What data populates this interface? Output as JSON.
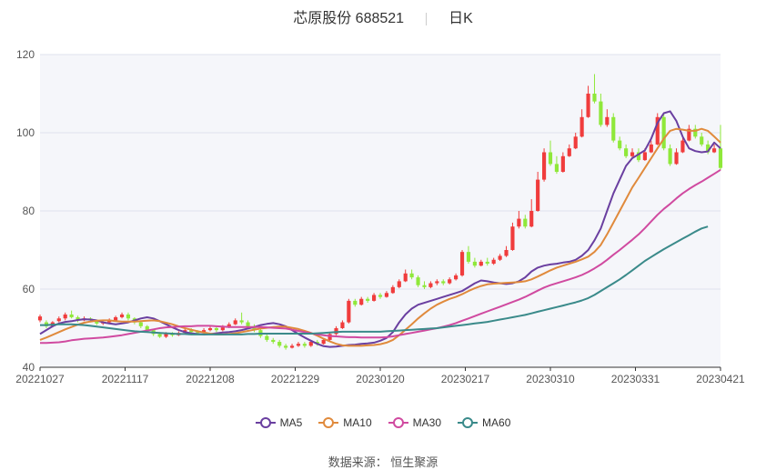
{
  "title": {
    "name": "芯原股份 688521",
    "period": "日K"
  },
  "source_text": "数据来源： 恒生聚源",
  "colors": {
    "up": "#f03c3c",
    "down": "#8fe83a",
    "ma5": "#6a3fa0",
    "ma10": "#e08a3c",
    "ma30": "#d04aa0",
    "ma60": "#3a8a8a",
    "plot_band": "#f5f6fa",
    "grid": "#dfe3ee"
  },
  "chart_data": {
    "type": "candlestick",
    "ylim": [
      40,
      120
    ],
    "yticks": [
      40,
      60,
      80,
      100,
      120
    ],
    "xtick_labels": [
      "20221027",
      "20221117",
      "20221208",
      "20221229",
      "20230120",
      "20230217",
      "20230310",
      "20230331",
      "20230421"
    ],
    "legend_position": "bottom-center",
    "grid": true,
    "series": [
      {
        "name": "MA5",
        "color_key": "ma5",
        "values": [
          48.5,
          49.5,
          50.5,
          51.2,
          51.6,
          51.8,
          52.1,
          52.3,
          52.2,
          52.0,
          51.5,
          51.2,
          51.0,
          51.2,
          51.5,
          52.0,
          52.5,
          52.8,
          52.5,
          51.8,
          51.0,
          50.2,
          49.5,
          49.0,
          48.7,
          48.5,
          48.4,
          48.5,
          48.7,
          48.9,
          49.0,
          49.2,
          49.5,
          49.9,
          50.3,
          50.8,
          51.1,
          51.3,
          51.0,
          50.5,
          49.5,
          48.5,
          47.6,
          46.8,
          46.0,
          45.4,
          45.2,
          45.3,
          45.5,
          45.7,
          45.8,
          46.0,
          46.1,
          46.3,
          46.8,
          47.5,
          49.0,
          51.5,
          53.5,
          55.0,
          56.0,
          56.5,
          57.0,
          57.5,
          58.0,
          58.5,
          59.0,
          59.5,
          60.5,
          61.5,
          62.2,
          62.0,
          61.7,
          61.5,
          61.3,
          61.5,
          62.0,
          63.0,
          64.5,
          65.5,
          66.0,
          66.3,
          66.5,
          66.8,
          67.0,
          67.5,
          68.5,
          70.0,
          72.5,
          75.5,
          80.0,
          84.5,
          88.0,
          91.5,
          93.5,
          94.5,
          95.5,
          98.5,
          102.5,
          105.0,
          105.5,
          103.0,
          99.0,
          96.0,
          95.3,
          95.0,
          95.2,
          97.5,
          96.0
        ]
      },
      {
        "name": "MA10",
        "color_key": "ma10",
        "values": [
          47.0,
          47.6,
          48.3,
          49.0,
          49.7,
          50.3,
          50.9,
          51.4,
          51.7,
          51.9,
          52.0,
          52.0,
          51.8,
          51.7,
          51.7,
          51.7,
          51.8,
          51.9,
          52.0,
          51.8,
          51.4,
          51.0,
          50.5,
          50.0,
          49.6,
          49.2,
          48.9,
          48.6,
          48.4,
          48.4,
          48.5,
          48.7,
          49.0,
          49.3,
          49.6,
          49.9,
          50.1,
          50.3,
          50.4,
          50.4,
          50.1,
          49.8,
          49.3,
          48.8,
          48.1,
          47.3,
          46.6,
          46.0,
          45.6,
          45.5,
          45.5,
          45.5,
          45.6,
          45.7,
          45.9,
          46.3,
          47.0,
          48.2,
          49.6,
          51.0,
          52.5,
          53.8,
          55.0,
          56.0,
          56.8,
          57.5,
          58.0,
          58.7,
          59.5,
          60.2,
          60.8,
          61.2,
          61.4,
          61.5,
          61.6,
          61.7,
          61.8,
          62.0,
          62.5,
          63.2,
          64.0,
          64.8,
          65.5,
          66.0,
          66.5,
          67.0,
          67.6,
          68.3,
          69.5,
          71.3,
          74.0,
          77.0,
          80.0,
          83.0,
          86.0,
          88.5,
          91.0,
          93.5,
          96.0,
          98.5,
          100.5,
          101.0,
          100.8,
          100.5,
          100.5,
          101.0,
          100.5,
          99.0,
          97.5
        ]
      },
      {
        "name": "MA30",
        "color_key": "ma30",
        "values": [
          46.2,
          46.2,
          46.3,
          46.4,
          46.6,
          46.9,
          47.1,
          47.3,
          47.4,
          47.5,
          47.6,
          47.8,
          48.0,
          48.2,
          48.5,
          48.8,
          49.1,
          49.4,
          49.7,
          50.0,
          50.2,
          50.3,
          50.4,
          50.5,
          50.5,
          50.6,
          50.6,
          50.6,
          50.5,
          50.4,
          50.3,
          50.3,
          50.3,
          50.3,
          50.3,
          50.3,
          50.2,
          50.1,
          50.0,
          49.9,
          49.6,
          49.3,
          49.0,
          48.7,
          48.4,
          48.2,
          48.0,
          47.9,
          47.8,
          47.7,
          47.7,
          47.6,
          47.6,
          47.6,
          47.6,
          47.7,
          47.9,
          48.2,
          48.5,
          48.8,
          49.1,
          49.4,
          49.7,
          50.0,
          50.4,
          50.8,
          51.3,
          51.9,
          52.5,
          53.1,
          53.7,
          54.3,
          54.9,
          55.5,
          56.1,
          56.7,
          57.3,
          58.0,
          58.8,
          59.6,
          60.4,
          61.0,
          61.5,
          62.0,
          62.5,
          63.0,
          63.6,
          64.4,
          65.3,
          66.3,
          67.5,
          68.8,
          70.0,
          71.3,
          72.6,
          74.0,
          75.6,
          77.3,
          79.0,
          80.5,
          81.8,
          83.2,
          84.5,
          85.6,
          86.6,
          87.5,
          88.5,
          89.5,
          90.5
        ]
      },
      {
        "name": "MA60",
        "color_key": "ma60",
        "values": [
          50.8,
          50.8,
          50.9,
          51.0,
          51.0,
          51.0,
          50.9,
          50.8,
          50.6,
          50.4,
          50.2,
          50.0,
          49.8,
          49.6,
          49.4,
          49.2,
          49.1,
          49.0,
          48.9,
          48.8,
          48.7,
          48.6,
          48.5,
          48.5,
          48.4,
          48.4,
          48.4,
          48.4,
          48.4,
          48.4,
          48.4,
          48.4,
          48.4,
          48.5,
          48.5,
          48.6,
          48.6,
          48.6,
          48.6,
          48.6,
          48.6,
          48.6,
          48.6,
          48.6,
          48.7,
          48.8,
          48.9,
          49.0,
          49.1,
          49.1,
          49.1,
          49.1,
          49.1,
          49.1,
          49.1,
          49.2,
          49.3,
          49.4,
          49.5,
          49.6,
          49.7,
          49.8,
          49.9,
          50.0,
          50.2,
          50.4,
          50.6,
          50.8,
          51.0,
          51.2,
          51.4,
          51.6,
          51.9,
          52.2,
          52.5,
          52.8,
          53.1,
          53.4,
          53.8,
          54.2,
          54.6,
          55.0,
          55.4,
          55.8,
          56.2,
          56.6,
          57.1,
          57.7,
          58.5,
          59.5,
          60.5,
          61.5,
          62.5,
          63.6,
          64.8,
          66.0,
          67.2,
          68.2,
          69.2,
          70.2,
          71.1,
          72.0,
          72.9,
          73.8,
          74.7,
          75.5,
          76.0
        ]
      }
    ],
    "candles": [
      [
        52,
        53,
        51.5,
        53.5
      ],
      [
        51.5,
        50.5,
        50,
        52
      ],
      [
        50.5,
        51.5,
        50.2,
        51.8
      ],
      [
        51.8,
        52.5,
        51.5,
        53
      ],
      [
        52.5,
        53.5,
        52,
        54
      ],
      [
        53.5,
        52.8,
        52.5,
        54.5
      ],
      [
        52.8,
        52,
        51.5,
        53.2
      ],
      [
        52,
        52.5,
        51.8,
        53
      ],
      [
        52.5,
        52,
        51.5,
        52.8
      ],
      [
        52,
        51.2,
        50.8,
        52.2
      ],
      [
        51.2,
        51.5,
        50.8,
        51.8
      ],
      [
        51.5,
        52,
        51,
        52.5
      ],
      [
        52,
        52.8,
        51.8,
        53.2
      ],
      [
        52.8,
        53.5,
        52.5,
        54
      ],
      [
        53.5,
        52.5,
        52,
        54
      ],
      [
        52.5,
        51.5,
        51,
        52.8
      ],
      [
        51.5,
        50.5,
        50,
        51.8
      ],
      [
        50.5,
        49.5,
        49,
        50.8
      ],
      [
        49.5,
        48.5,
        48,
        49.8
      ],
      [
        48.5,
        47.8,
        47.5,
        49
      ],
      [
        47.8,
        48.5,
        47.5,
        49
      ],
      [
        48.5,
        48.2,
        47.8,
        49
      ],
      [
        48.2,
        48.8,
        48,
        49.2
      ],
      [
        48.8,
        49.5,
        48.5,
        49.8
      ],
      [
        49.5,
        49,
        48.8,
        50
      ],
      [
        49,
        48.8,
        48.5,
        49.5
      ],
      [
        48.8,
        49.5,
        48.5,
        50
      ],
      [
        49.5,
        50,
        49.2,
        50.5
      ],
      [
        50,
        49.5,
        49,
        50.5
      ],
      [
        49.5,
        50.2,
        49.2,
        50.8
      ],
      [
        50.2,
        51,
        50,
        51.5
      ],
      [
        51,
        52,
        50.8,
        52.5
      ],
      [
        52,
        51.5,
        51,
        54
      ],
      [
        51.5,
        50.5,
        50,
        52
      ],
      [
        50.5,
        49.5,
        49,
        51
      ],
      [
        49.5,
        48,
        47.5,
        50
      ],
      [
        48,
        47,
        46.5,
        48.5
      ],
      [
        47,
        46.5,
        46,
        47.5
      ],
      [
        46.5,
        45.5,
        45,
        47
      ],
      [
        45.5,
        45,
        44.5,
        46
      ],
      [
        45,
        45.5,
        44.8,
        46
      ],
      [
        45.5,
        46,
        45.2,
        46.5
      ],
      [
        46,
        45.5,
        45,
        46.5
      ],
      [
        45.5,
        46.5,
        45.2,
        47
      ],
      [
        46.5,
        46,
        45.5,
        47
      ],
      [
        46,
        47,
        45.8,
        47.5
      ],
      [
        47,
        48.5,
        46.8,
        49
      ],
      [
        48.5,
        50,
        48.2,
        50.5
      ],
      [
        50,
        51.5,
        49.8,
        52
      ],
      [
        51.5,
        57,
        51.2,
        57.5
      ],
      [
        57,
        56,
        55.5,
        57.5
      ],
      [
        56,
        57.5,
        55.8,
        58
      ],
      [
        57.5,
        57,
        56.5,
        58
      ],
      [
        57,
        58.5,
        56.8,
        59
      ],
      [
        58.5,
        58,
        57.5,
        59
      ],
      [
        58,
        59,
        57.8,
        59.5
      ],
      [
        59,
        60.5,
        58.8,
        61
      ],
      [
        60.5,
        62,
        60.2,
        62.5
      ],
      [
        62,
        64,
        61.8,
        65
      ],
      [
        64,
        63,
        62.5,
        65
      ],
      [
        63,
        61,
        60.5,
        63.5
      ],
      [
        61,
        60.5,
        60,
        62
      ],
      [
        60.5,
        61.5,
        60.2,
        62
      ],
      [
        61.5,
        62,
        61,
        62.5
      ],
      [
        62,
        61.5,
        61,
        62.5
      ],
      [
        61.5,
        62.5,
        61.2,
        63
      ],
      [
        62.5,
        63.5,
        62.2,
        64
      ],
      [
        63.5,
        69.5,
        63.2,
        70
      ],
      [
        69.5,
        67,
        66.5,
        71
      ],
      [
        67,
        66,
        65.5,
        68
      ],
      [
        66,
        67,
        65.8,
        67.5
      ],
      [
        67,
        66.5,
        66,
        68
      ],
      [
        66.5,
        67.5,
        66.2,
        68
      ],
      [
        67.5,
        68.5,
        67.2,
        69
      ],
      [
        68.5,
        70,
        68.2,
        71
      ],
      [
        70,
        76,
        69.8,
        77
      ],
      [
        76,
        78,
        75.5,
        80
      ],
      [
        78,
        76,
        75.5,
        79
      ],
      [
        76,
        80,
        75.8,
        83
      ],
      [
        80,
        88,
        79.8,
        90
      ],
      [
        88,
        95,
        87.5,
        96
      ],
      [
        95,
        92,
        91.5,
        98
      ],
      [
        92,
        90,
        89.5,
        94
      ],
      [
        90,
        94,
        89.8,
        95
      ],
      [
        94,
        96,
        93.8,
        97
      ],
      [
        96,
        99,
        95.8,
        100
      ],
      [
        99,
        104,
        98.8,
        106
      ],
      [
        104,
        110,
        103.8,
        112
      ],
      [
        110,
        108,
        107.5,
        115
      ],
      [
        108,
        102,
        101.5,
        110
      ],
      [
        102,
        104,
        101.5,
        106
      ],
      [
        104,
        98,
        97.5,
        105
      ],
      [
        98,
        96,
        95.5,
        99
      ],
      [
        96,
        94,
        93.5,
        97
      ],
      [
        94,
        95,
        93.5,
        96
      ],
      [
        95,
        93,
        92.5,
        96
      ],
      [
        93,
        95,
        92.8,
        96
      ],
      [
        95,
        97,
        94.8,
        98
      ],
      [
        97,
        104,
        96.8,
        105
      ],
      [
        104,
        96,
        95.5,
        105
      ],
      [
        96,
        92,
        91.5,
        97
      ],
      [
        92,
        95,
        91.8,
        96
      ],
      [
        95,
        98,
        94.8,
        99
      ],
      [
        98,
        101,
        97.8,
        102
      ],
      [
        101,
        99,
        98.5,
        102
      ],
      [
        99,
        97,
        96.5,
        100
      ],
      [
        97,
        95,
        94.5,
        98
      ],
      [
        95,
        96,
        94.8,
        97
      ],
      [
        96,
        91,
        90.5,
        102
      ]
    ]
  }
}
